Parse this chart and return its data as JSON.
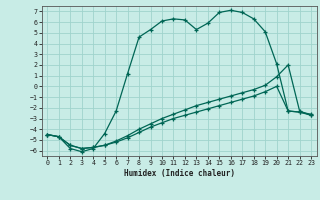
{
  "title": "",
  "xlabel": "Humidex (Indice chaleur)",
  "bg_color": "#c8ece6",
  "grid_color": "#a0d4cc",
  "line_color": "#006655",
  "xlim": [
    -0.5,
    23.5
  ],
  "ylim": [
    -6.5,
    7.5
  ],
  "xticks": [
    0,
    1,
    2,
    3,
    4,
    5,
    6,
    7,
    8,
    9,
    10,
    11,
    12,
    13,
    14,
    15,
    16,
    17,
    18,
    19,
    20,
    21,
    22,
    23
  ],
  "yticks": [
    -6,
    -5,
    -4,
    -3,
    -2,
    -1,
    0,
    1,
    2,
    3,
    4,
    5,
    6,
    7
  ],
  "line1_x": [
    0,
    1,
    2,
    3,
    4,
    5,
    6,
    7,
    8,
    9,
    10,
    11,
    12,
    13,
    14,
    15,
    16,
    17,
    18,
    19,
    20,
    21,
    22,
    23
  ],
  "line1_y": [
    -4.5,
    -4.7,
    -5.8,
    -6.1,
    -5.8,
    -4.4,
    -2.3,
    1.2,
    4.6,
    5.3,
    6.1,
    6.3,
    6.2,
    5.3,
    5.9,
    6.9,
    7.1,
    6.9,
    6.3,
    5.1,
    2.1,
    -2.3,
    -2.4,
    -2.6
  ],
  "line2_x": [
    0,
    1,
    2,
    3,
    4,
    5,
    6,
    7,
    8,
    9,
    10,
    11,
    12,
    13,
    14,
    15,
    16,
    17,
    18,
    19,
    20,
    21,
    22,
    23
  ],
  "line2_y": [
    -4.5,
    -4.7,
    -5.5,
    -5.8,
    -5.7,
    -5.5,
    -5.2,
    -4.8,
    -4.3,
    -3.8,
    -3.4,
    -3.0,
    -2.7,
    -2.4,
    -2.1,
    -1.8,
    -1.5,
    -1.2,
    -0.9,
    -0.5,
    0.0,
    -2.3,
    -2.4,
    -2.7
  ],
  "line3_x": [
    0,
    1,
    2,
    3,
    4,
    5,
    6,
    7,
    8,
    9,
    10,
    11,
    12,
    13,
    14,
    15,
    16,
    17,
    18,
    19,
    20,
    21,
    22,
    23
  ],
  "line3_y": [
    -4.5,
    -4.7,
    -5.5,
    -5.8,
    -5.7,
    -5.5,
    -5.1,
    -4.6,
    -4.0,
    -3.5,
    -3.0,
    -2.6,
    -2.2,
    -1.8,
    -1.5,
    -1.2,
    -0.9,
    -0.6,
    -0.3,
    0.1,
    0.9,
    2.0,
    -2.3,
    -2.7
  ]
}
